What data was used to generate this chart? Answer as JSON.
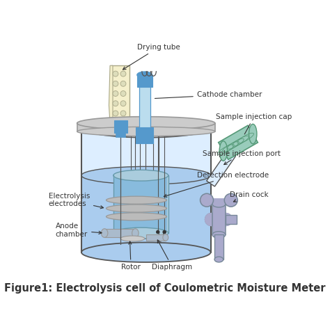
{
  "figure_title": "Figure1: Electrolysis cell of Coulometric Moisture Meter",
  "title_fontsize": 10.5,
  "bg_color": "#ffffff",
  "labels": {
    "drying_tube": "Drying tube",
    "cathode_chamber": "Cathode chamber",
    "sample_injection_cap": "Sample injection cap",
    "sample_injection_port": "Sample injection port",
    "detection_electrode": "Detection electrode",
    "drain_cock": "Drain cock",
    "electrolysis_electrodes": "Electrolysis\nelectrodes",
    "anode_chamber": "Anode\nchamber",
    "rotor": "Rotor",
    "diaphragm": "Diaphragm"
  },
  "colors": {
    "beaker_outline": "#555555",
    "beaker_fill": "#ddeeff",
    "beaker_liquid": "#aaccee",
    "lid_fill": "#cccccc",
    "lid_outline": "#999999",
    "drying_tube_fill": "#f5f0cc",
    "drying_tube_outline": "#aaa888",
    "blue_connector": "#5599cc",
    "cathode_tube_fill": "#bbddee",
    "cathode_tube_outline": "#5599cc",
    "inner_cup_fill": "#aaccdd",
    "inner_cup_outline": "#6699aa",
    "electrode_disk": "#bbbbbb",
    "electrode_outline": "#999999",
    "anode_body": "#aabbcc",
    "injection_cap_fill": "#99ccbb",
    "injection_cap_outline": "#559977",
    "injection_port_outline": "#6699aa",
    "drain_cock_fill": "#aaaacc",
    "drain_cock_outline": "#778899",
    "label_color": "#333333",
    "wire_color": "#555555",
    "outline": "#555555"
  },
  "figsize": [
    4.74,
    4.83
  ],
  "dpi": 100
}
